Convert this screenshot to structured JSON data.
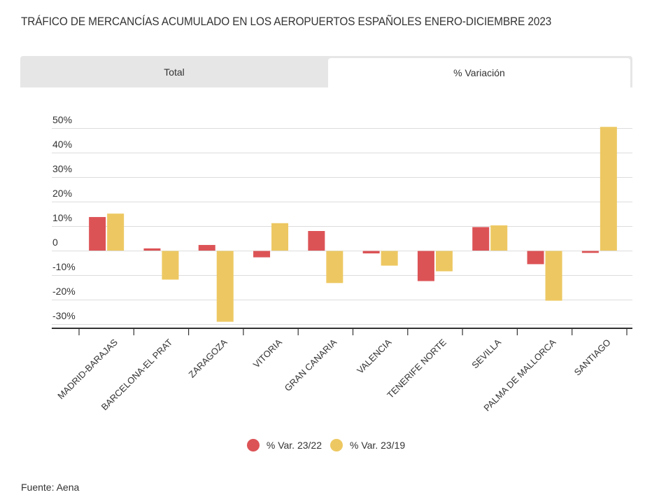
{
  "title": "TRÁFICO DE MERCANCÍAS ACUMULADO EN LOS AEROPUERTOS ESPAÑOLES ENERO-DICIEMBRE 2023",
  "tabs": [
    {
      "label": "Total",
      "active": false
    },
    {
      "label": "% Variación",
      "active": true
    }
  ],
  "source": "Fuente: Aena",
  "colors": {
    "var_23_22": "#dc5356",
    "var_23_19": "#edc862",
    "grid": "#dddddd",
    "axis": "#333333"
  },
  "chart_data": {
    "type": "bar",
    "title": "TRÁFICO DE MERCANCÍAS ACUMULADO EN LOS AEROPUERTOS ESPAÑOLES ENERO-DICIEMBRE 2023",
    "xlabel": "",
    "ylabel": "",
    "ylim": [
      -30,
      50
    ],
    "yticks": [
      50,
      40,
      30,
      20,
      10,
      0,
      -10,
      -20,
      -30
    ],
    "ytick_labels": [
      "50%",
      "40%",
      "30%",
      "20%",
      "10%",
      "0",
      "-10%",
      "-20%",
      "-30%"
    ],
    "grid": true,
    "legend_position": "bottom",
    "categories": [
      "MADRID-BARAJAS",
      "BARCELONA-EL PRAT",
      "ZARAGOZA",
      "VITORIA",
      "GRAN CANARIA",
      "VALENCIA",
      "TENERIFE NORTE",
      "SEVILLA",
      "PALMA DE MALLORCA",
      "SANTIAGO"
    ],
    "series": [
      {
        "name": "% Var. 23/22",
        "color": "#dc5356",
        "values": [
          13.7,
          0.9,
          2.3,
          -2.6,
          8.0,
          -1.0,
          -12.3,
          9.6,
          -5.4,
          -0.8
        ]
      },
      {
        "name": "% Var. 23/19",
        "color": "#edc862",
        "values": [
          15.1,
          -11.7,
          -28.9,
          11.2,
          -13.1,
          -6.0,
          -8.3,
          10.3,
          -20.3,
          50.5
        ]
      }
    ]
  }
}
